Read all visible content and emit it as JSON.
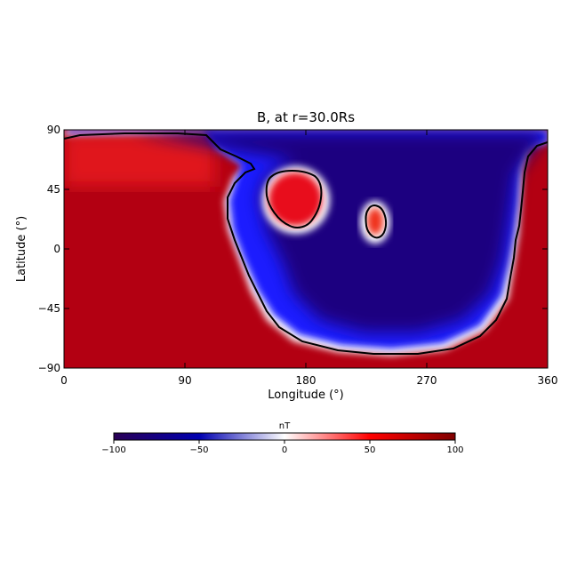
{
  "chart_data": {
    "type": "heatmap",
    "title": "B, at r=30.0Rs",
    "xlabel": "Longitude (°)",
    "ylabel": "Latitude (°)",
    "xlim": [
      0,
      360
    ],
    "ylim": [
      -90,
      90
    ],
    "x_ticks": [
      "0",
      "90",
      "180",
      "270",
      "360"
    ],
    "y_ticks": [
      "90",
      "45",
      "0",
      "−45",
      "−90"
    ],
    "colorbar": {
      "label": "nT",
      "range": [
        -100,
        100
      ],
      "ticks": [
        "−100",
        "−50",
        "0",
        "50",
        "100"
      ],
      "colors": [
        "#2a0055",
        "#00007f",
        "#0000ff",
        "#ffffff",
        "#ff0000",
        "#7f0000"
      ]
    },
    "zero_contour": "black line",
    "regions": [
      {
        "sign": "negative",
        "peak_nT": -100,
        "description": "large negative region, lon ~120–350, lat ~-80 to 90"
      },
      {
        "sign": "positive",
        "peak_nT": 100,
        "description": "positive region, lon 0–120 and 350–360"
      },
      {
        "sign": "positive",
        "peak_nT": 80,
        "center": [
          168,
          35
        ]
      },
      {
        "sign": "positive",
        "peak_nT": 60,
        "center": [
          232,
          20
        ]
      }
    ]
  }
}
